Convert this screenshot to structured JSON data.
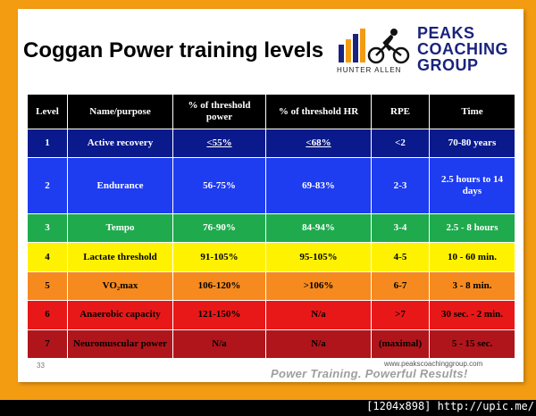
{
  "slide": {
    "title": "Coggan Power training levels",
    "page_number": "33",
    "url": "www.peakscoachinggroup.com",
    "tagline": "Power Training. Powerful Results!"
  },
  "logo": {
    "line1": "PEAKS",
    "line2": "COACHING",
    "line3": "GROUP",
    "byline": "HUNTER ALLEN"
  },
  "table": {
    "headers": [
      "Level",
      "Name/purpose",
      "% of threshold power",
      "% of threshold HR",
      "RPE",
      "Time"
    ],
    "rows": [
      {
        "level": "1",
        "name": "Active recovery",
        "power": "<55%",
        "hr": "<68%",
        "rpe": "<2",
        "time": "70-80 years"
      },
      {
        "level": "2",
        "name": "Endurance",
        "power": "56-75%",
        "hr": "69-83%",
        "rpe": "2-3",
        "time": "2.5 hours to 14 days"
      },
      {
        "level": "3",
        "name": "Tempo",
        "power": "76-90%",
        "hr": "84-94%",
        "rpe": "3-4",
        "time": "2.5 - 8 hours"
      },
      {
        "level": "4",
        "name": "Lactate threshold",
        "power": "91-105%",
        "hr": "95-105%",
        "rpe": "4-5",
        "time": "10 - 60 min."
      },
      {
        "level": "5",
        "name": "VO₂max",
        "power": "106-120%",
        "hr": ">106%",
        "rpe": "6-7",
        "time": "3 - 8 min."
      },
      {
        "level": "6",
        "name": "Anaerobic capacity",
        "power": "121-150%",
        "hr": "N/a",
        "rpe": ">7",
        "time": "30 sec. - 2 min."
      },
      {
        "level": "7",
        "name": "Neuromuscular power",
        "power": "N/a",
        "hr": "N/a",
        "rpe": "(maximal)",
        "time": "5 - 15 sec."
      }
    ]
  },
  "watermark": "[1204x898] http://upic.me/",
  "colors": {
    "frame": "#f39c12",
    "level1": "#0a1a8c",
    "level2": "#1e3cf0",
    "level3": "#1faa4e",
    "level4": "#fff200",
    "level5": "#f68a1f",
    "level6": "#e81818",
    "level7": "#b0151b"
  }
}
